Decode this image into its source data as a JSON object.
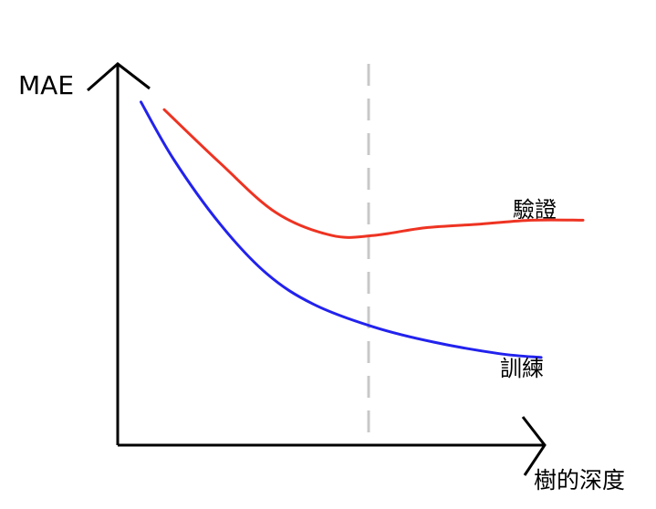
{
  "chart_data": {
    "type": "line",
    "title": "",
    "xlabel": "樹的深度",
    "ylabel": "MAE",
    "grid": false,
    "axis_ticks": false,
    "optimal_marker": {
      "style": "dashed-vertical",
      "color": "#c8c8c8"
    },
    "series": [
      {
        "name": "驗證",
        "color": "#ee3322",
        "points": [
          [
            0.1,
            0.88
          ],
          [
            0.22,
            0.74
          ],
          [
            0.34,
            0.61
          ],
          [
            0.46,
            0.55
          ],
          [
            0.55,
            0.55
          ],
          [
            0.66,
            0.57
          ],
          [
            0.78,
            0.58
          ],
          [
            0.89,
            0.59
          ],
          [
            1.0,
            0.59
          ]
        ]
      },
      {
        "name": "訓練",
        "color": "#2222ee",
        "points": [
          [
            0.05,
            0.9
          ],
          [
            0.12,
            0.75
          ],
          [
            0.22,
            0.58
          ],
          [
            0.32,
            0.45
          ],
          [
            0.42,
            0.37
          ],
          [
            0.55,
            0.31
          ],
          [
            0.68,
            0.27
          ],
          [
            0.82,
            0.24
          ],
          [
            0.91,
            0.23
          ]
        ]
      }
    ]
  }
}
